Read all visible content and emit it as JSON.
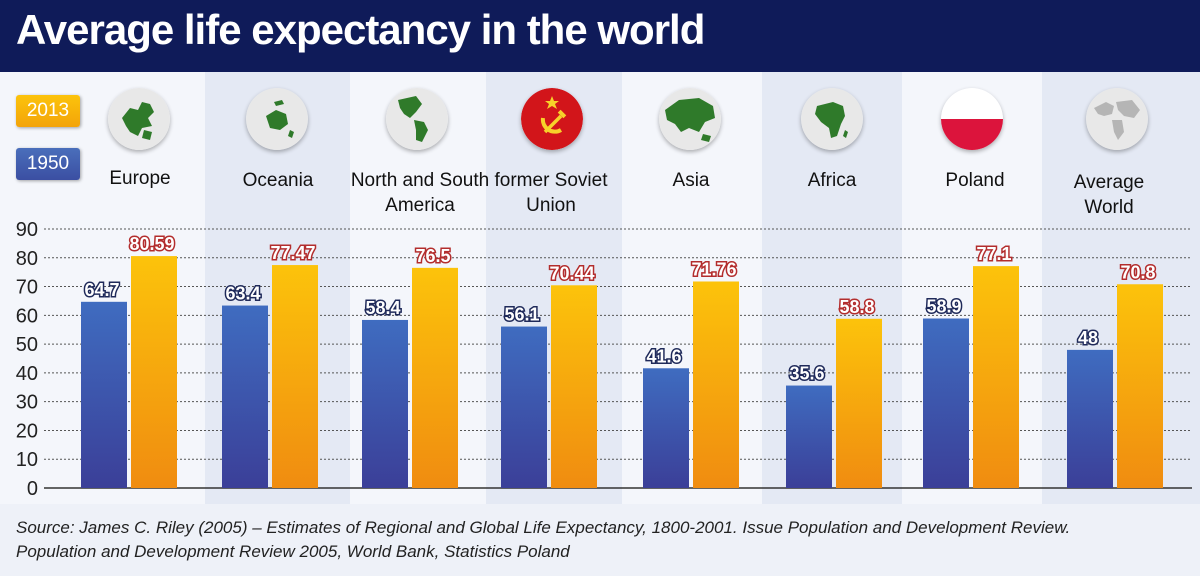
{
  "title": "Average life expectancy in the world",
  "legend": {
    "items": [
      {
        "label": "2013",
        "color": "#f7b10a"
      },
      {
        "label": "1950",
        "color": "#3d55a5"
      }
    ]
  },
  "regions": [
    {
      "name": "Europe",
      "icon": "europe-globe-icon"
    },
    {
      "name": "Oceania",
      "icon": "oceania-globe-icon"
    },
    {
      "name": "North and South America",
      "icon": "americas-globe-icon"
    },
    {
      "name": "former Soviet Union",
      "icon": "hammer-sickle-icon"
    },
    {
      "name": "Asia",
      "icon": "asia-globe-icon"
    },
    {
      "name": "Africa",
      "icon": "africa-globe-icon"
    },
    {
      "name": "Poland",
      "icon": "poland-flag-icon"
    },
    {
      "name": "Average World",
      "icon": "world-globe-icon"
    }
  ],
  "colors": {
    "header": "#0f1b59",
    "bar_1950_top": "#3f6cc0",
    "bar_1950_bottom": "#3b3f98",
    "bar_2013_top": "#fcc30b",
    "bar_2013_bottom": "#f08c10",
    "label_2013": "#b32d2d",
    "label_1950": "#1f2a5a",
    "globe_land": "#2f7a2a",
    "gridline": "#555555"
  },
  "chart_data": {
    "type": "bar",
    "title": "Average life expectancy in the world",
    "categories": [
      "Europe",
      "Oceania",
      "North and South America",
      "former Soviet Union",
      "Asia",
      "Africa",
      "Poland",
      "Average World"
    ],
    "series": [
      {
        "name": "1950",
        "values": [
          64.7,
          63.4,
          58.4,
          56.1,
          41.6,
          35.6,
          58.9,
          48
        ]
      },
      {
        "name": "2013",
        "values": [
          80.59,
          77.47,
          76.5,
          70.44,
          71.76,
          58.8,
          77.1,
          70.8
        ]
      }
    ],
    "data_labels": {
      "1950": [
        "64.7",
        "63.4",
        "58.4",
        "56.1",
        "41.6",
        "35.6",
        "58.9",
        "48"
      ],
      "2013": [
        "80.59",
        "77.47",
        "76.5",
        "70.44",
        "71.76",
        "58.8",
        "77.1",
        "70.8"
      ]
    },
    "y_ticks": [
      "0",
      "10",
      "20",
      "30",
      "40",
      "50",
      "60",
      "70",
      "80",
      "90"
    ],
    "ylim": [
      0,
      90
    ],
    "grid": true,
    "legend": "top-left",
    "xlabel": "",
    "ylabel": ""
  },
  "source": {
    "line1": "Source: James C. Riley (2005) – Estimates of Regional and Global Life Expectancy, 1800-2001. Issue Population and Development Review.",
    "line2": "Population and Development Review 2005, World Bank, Statistics Poland"
  }
}
